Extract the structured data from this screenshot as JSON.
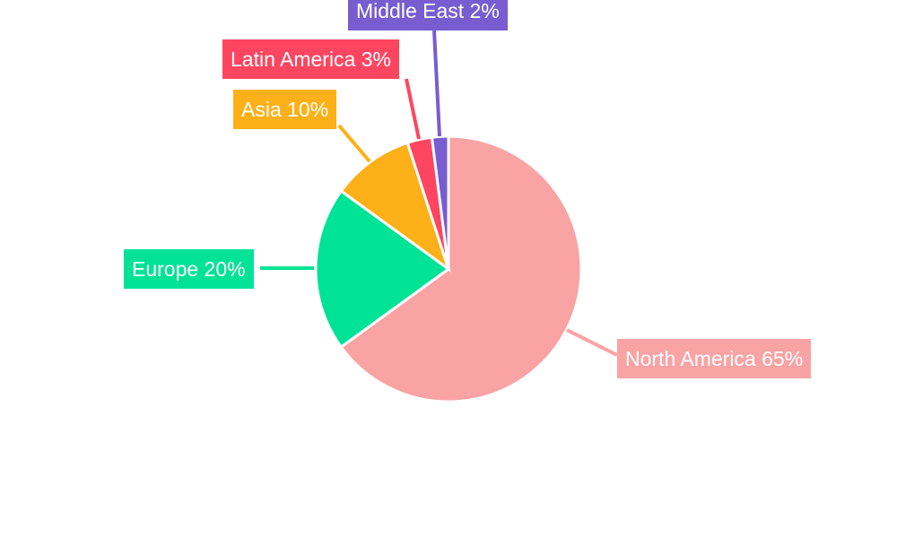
{
  "chart_data": {
    "type": "pie",
    "title": "",
    "start_angle": "top, clockwise",
    "slices": [
      {
        "label": "North America",
        "value": 65,
        "display": "North America 65%",
        "color": "#F9A3A4"
      },
      {
        "label": "Europe",
        "value": 20,
        "display": "Europe 20%",
        "color": "#00E396"
      },
      {
        "label": "Asia",
        "value": 10,
        "display": "Asia 10%",
        "color": "#FEB019"
      },
      {
        "label": "Latin America",
        "value": 3,
        "display": "Latin America 3%",
        "color": "#FF4560"
      },
      {
        "label": "Middle East",
        "value": 2,
        "display": "Middle East 2%",
        "color": "#775DD0"
      }
    ],
    "legend": "none",
    "data_labels": "outside with leader lines"
  }
}
